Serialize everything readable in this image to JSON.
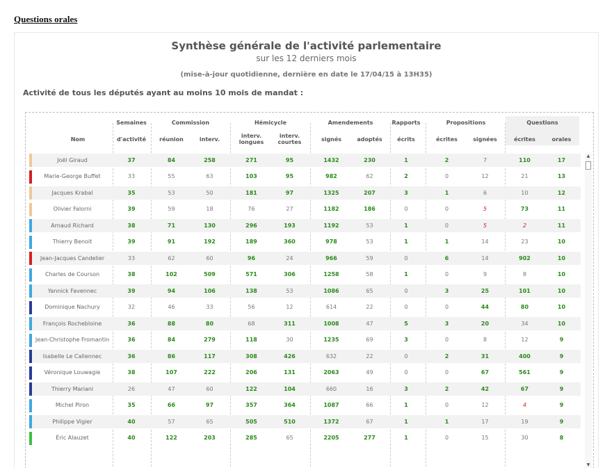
{
  "page_link": "Questions orales",
  "title": "Synthèse générale de l'activité parlementaire",
  "subtitle": "sur les 12 derniers mois",
  "update_note": "(mise-à-jour quotidienne, dernière en date le 17/04/15 à 13H35)",
  "section_title": "Activité de tous les députés ayant au moins 10 mois de mandat :",
  "groups": {
    "semaines": "Semaines",
    "commission": "Commission",
    "hemicycle": "Hémicycle",
    "amendements": "Amendements",
    "rapports": "Rapports",
    "propositions": "Propositions",
    "questions": "Questions"
  },
  "columns": {
    "nom": "Nom",
    "activite": "d'activité",
    "reunion": "réunion",
    "interv": "interv.",
    "interv_longues": "interv. longues",
    "interv_courtes": "interv. courtes",
    "signes": "signés",
    "adoptes": "adoptés",
    "ecrits": "écrits",
    "ecrites": "écrites",
    "signees": "signées",
    "q_ecrites": "écrites",
    "orales": "orales"
  },
  "group_colors": {
    "ecolo": "#6fcf6f",
    "src": "#f0c896",
    "gdr": "#d42020",
    "ump": "#3a54b0",
    "udi": "#40a8e0",
    "fn": "#151565"
  },
  "rows": [
    {
      "name": "Joël Giraud",
      "group": "srd",
      "color": "#f0c896",
      "semaines": {
        "v": "37",
        "s": "g"
      },
      "reunion": {
        "v": "84",
        "s": "g"
      },
      "interv": {
        "v": "258",
        "s": "g"
      },
      "longues": {
        "v": "271",
        "s": "g"
      },
      "courtes": {
        "v": "95",
        "s": "g"
      },
      "signes": {
        "v": "1432",
        "s": "g"
      },
      "adoptes": {
        "v": "230",
        "s": "g"
      },
      "rapports": {
        "v": "1",
        "s": "g"
      },
      "p_ecrites": {
        "v": "2",
        "s": "g"
      },
      "p_signees": {
        "v": "7",
        "s": "n"
      },
      "q_ecrites": {
        "v": "110",
        "s": "g"
      },
      "orales": {
        "v": "17",
        "s": "g"
      }
    },
    {
      "name": "Marie-George Buffet",
      "color": "#d42020",
      "semaines": {
        "v": "33",
        "s": "n"
      },
      "reunion": {
        "v": "55",
        "s": "n"
      },
      "interv": {
        "v": "63",
        "s": "n"
      },
      "longues": {
        "v": "103",
        "s": "g"
      },
      "courtes": {
        "v": "95",
        "s": "g"
      },
      "signes": {
        "v": "982",
        "s": "g"
      },
      "adoptes": {
        "v": "62",
        "s": "n"
      },
      "rapports": {
        "v": "2",
        "s": "g"
      },
      "p_ecrites": {
        "v": "0",
        "s": "n"
      },
      "p_signees": {
        "v": "12",
        "s": "n"
      },
      "q_ecrites": {
        "v": "21",
        "s": "n"
      },
      "orales": {
        "v": "13",
        "s": "g"
      }
    },
    {
      "name": "Jacques Krabal",
      "color": "#f0c896",
      "semaines": {
        "v": "35",
        "s": "g"
      },
      "reunion": {
        "v": "53",
        "s": "n"
      },
      "interv": {
        "v": "50",
        "s": "n"
      },
      "longues": {
        "v": "181",
        "s": "g"
      },
      "courtes": {
        "v": "97",
        "s": "g"
      },
      "signes": {
        "v": "1325",
        "s": "g"
      },
      "adoptes": {
        "v": "207",
        "s": "g"
      },
      "rapports": {
        "v": "3",
        "s": "g"
      },
      "p_ecrites": {
        "v": "1",
        "s": "g"
      },
      "p_signees": {
        "v": "6",
        "s": "n"
      },
      "q_ecrites": {
        "v": "10",
        "s": "n"
      },
      "orales": {
        "v": "12",
        "s": "g"
      }
    },
    {
      "name": "Olivier Falorni",
      "color": "#f0c896",
      "semaines": {
        "v": "39",
        "s": "g"
      },
      "reunion": {
        "v": "59",
        "s": "n"
      },
      "interv": {
        "v": "18",
        "s": "n"
      },
      "longues": {
        "v": "76",
        "s": "n"
      },
      "courtes": {
        "v": "27",
        "s": "n"
      },
      "signes": {
        "v": "1182",
        "s": "g"
      },
      "adoptes": {
        "v": "186",
        "s": "g"
      },
      "rapports": {
        "v": "0",
        "s": "n"
      },
      "p_ecrites": {
        "v": "0",
        "s": "n"
      },
      "p_signees": {
        "v": "5",
        "s": "r"
      },
      "q_ecrites": {
        "v": "73",
        "s": "g"
      },
      "orales": {
        "v": "11",
        "s": "g"
      }
    },
    {
      "name": "Arnaud Richard",
      "color": "#40a8e0",
      "semaines": {
        "v": "38",
        "s": "g"
      },
      "reunion": {
        "v": "71",
        "s": "g"
      },
      "interv": {
        "v": "130",
        "s": "g"
      },
      "longues": {
        "v": "296",
        "s": "g"
      },
      "courtes": {
        "v": "193",
        "s": "g"
      },
      "signes": {
        "v": "1192",
        "s": "g"
      },
      "adoptes": {
        "v": "53",
        "s": "n"
      },
      "rapports": {
        "v": "1",
        "s": "g"
      },
      "p_ecrites": {
        "v": "0",
        "s": "n"
      },
      "p_signees": {
        "v": "5",
        "s": "r"
      },
      "q_ecrites": {
        "v": "2",
        "s": "r"
      },
      "orales": {
        "v": "11",
        "s": "g"
      }
    },
    {
      "name": "Thierry Benoit",
      "color": "#40a8e0",
      "semaines": {
        "v": "39",
        "s": "g"
      },
      "reunion": {
        "v": "91",
        "s": "g"
      },
      "interv": {
        "v": "192",
        "s": "g"
      },
      "longues": {
        "v": "189",
        "s": "g"
      },
      "courtes": {
        "v": "360",
        "s": "g"
      },
      "signes": {
        "v": "978",
        "s": "g"
      },
      "adoptes": {
        "v": "53",
        "s": "n"
      },
      "rapports": {
        "v": "1",
        "s": "g"
      },
      "p_ecrites": {
        "v": "1",
        "s": "g"
      },
      "p_signees": {
        "v": "14",
        "s": "n"
      },
      "q_ecrites": {
        "v": "23",
        "s": "n"
      },
      "orales": {
        "v": "10",
        "s": "g"
      }
    },
    {
      "name": "Jean-Jacques Candelier",
      "color": "#d42020",
      "semaines": {
        "v": "33",
        "s": "n"
      },
      "reunion": {
        "v": "62",
        "s": "n"
      },
      "interv": {
        "v": "60",
        "s": "n"
      },
      "longues": {
        "v": "96",
        "s": "g"
      },
      "courtes": {
        "v": "24",
        "s": "n"
      },
      "signes": {
        "v": "966",
        "s": "g"
      },
      "adoptes": {
        "v": "59",
        "s": "n"
      },
      "rapports": {
        "v": "0",
        "s": "n"
      },
      "p_ecrites": {
        "v": "6",
        "s": "g"
      },
      "p_signees": {
        "v": "14",
        "s": "n"
      },
      "q_ecrites": {
        "v": "902",
        "s": "g"
      },
      "orales": {
        "v": "10",
        "s": "g"
      }
    },
    {
      "name": "Charles de Courson",
      "color": "#40a8e0",
      "semaines": {
        "v": "38",
        "s": "g"
      },
      "reunion": {
        "v": "102",
        "s": "g"
      },
      "interv": {
        "v": "509",
        "s": "g"
      },
      "longues": {
        "v": "571",
        "s": "g"
      },
      "courtes": {
        "v": "306",
        "s": "g"
      },
      "signes": {
        "v": "1258",
        "s": "g"
      },
      "adoptes": {
        "v": "58",
        "s": "n"
      },
      "rapports": {
        "v": "1",
        "s": "g"
      },
      "p_ecrites": {
        "v": "0",
        "s": "n"
      },
      "p_signees": {
        "v": "9",
        "s": "n"
      },
      "q_ecrites": {
        "v": "8",
        "s": "n"
      },
      "orales": {
        "v": "10",
        "s": "g"
      }
    },
    {
      "name": "Yannick Favennec",
      "color": "#40a8e0",
      "semaines": {
        "v": "39",
        "s": "g"
      },
      "reunion": {
        "v": "94",
        "s": "g"
      },
      "interv": {
        "v": "106",
        "s": "g"
      },
      "longues": {
        "v": "138",
        "s": "g"
      },
      "courtes": {
        "v": "53",
        "s": "n"
      },
      "signes": {
        "v": "1086",
        "s": "g"
      },
      "adoptes": {
        "v": "65",
        "s": "n"
      },
      "rapports": {
        "v": "0",
        "s": "n"
      },
      "p_ecrites": {
        "v": "3",
        "s": "g"
      },
      "p_signees": {
        "v": "25",
        "s": "g"
      },
      "q_ecrites": {
        "v": "101",
        "s": "g"
      },
      "orales": {
        "v": "10",
        "s": "g"
      }
    },
    {
      "name": "Dominique Nachury",
      "color": "#2a3a9a",
      "semaines": {
        "v": "32",
        "s": "n"
      },
      "reunion": {
        "v": "46",
        "s": "n"
      },
      "interv": {
        "v": "33",
        "s": "n"
      },
      "longues": {
        "v": "56",
        "s": "n"
      },
      "courtes": {
        "v": "12",
        "s": "n"
      },
      "signes": {
        "v": "614",
        "s": "n"
      },
      "adoptes": {
        "v": "22",
        "s": "n"
      },
      "rapports": {
        "v": "0",
        "s": "n"
      },
      "p_ecrites": {
        "v": "0",
        "s": "n"
      },
      "p_signees": {
        "v": "44",
        "s": "g"
      },
      "q_ecrites": {
        "v": "80",
        "s": "g"
      },
      "orales": {
        "v": "10",
        "s": "g"
      }
    },
    {
      "name": "François Rochebloine",
      "color": "#40a8e0",
      "semaines": {
        "v": "36",
        "s": "g"
      },
      "reunion": {
        "v": "88",
        "s": "g"
      },
      "interv": {
        "v": "80",
        "s": "g"
      },
      "longues": {
        "v": "68",
        "s": "n"
      },
      "courtes": {
        "v": "311",
        "s": "g"
      },
      "signes": {
        "v": "1008",
        "s": "g"
      },
      "adoptes": {
        "v": "47",
        "s": "n"
      },
      "rapports": {
        "v": "5",
        "s": "g"
      },
      "p_ecrites": {
        "v": "3",
        "s": "g"
      },
      "p_signees": {
        "v": "20",
        "s": "g"
      },
      "q_ecrites": {
        "v": "34",
        "s": "n"
      },
      "orales": {
        "v": "10",
        "s": "g"
      }
    },
    {
      "name": "Jean-Christophe Fromantin",
      "color": "#40a8e0",
      "semaines": {
        "v": "36",
        "s": "g"
      },
      "reunion": {
        "v": "84",
        "s": "g"
      },
      "interv": {
        "v": "279",
        "s": "g"
      },
      "longues": {
        "v": "118",
        "s": "g"
      },
      "courtes": {
        "v": "30",
        "s": "n"
      },
      "signes": {
        "v": "1235",
        "s": "g"
      },
      "adoptes": {
        "v": "69",
        "s": "n"
      },
      "rapports": {
        "v": "3",
        "s": "g"
      },
      "p_ecrites": {
        "v": "0",
        "s": "n"
      },
      "p_signees": {
        "v": "8",
        "s": "n"
      },
      "q_ecrites": {
        "v": "12",
        "s": "n"
      },
      "orales": {
        "v": "9",
        "s": "g"
      }
    },
    {
      "name": "Isabelle Le Callennec",
      "color": "#2a3a9a",
      "semaines": {
        "v": "36",
        "s": "g"
      },
      "reunion": {
        "v": "86",
        "s": "g"
      },
      "interv": {
        "v": "117",
        "s": "g"
      },
      "longues": {
        "v": "308",
        "s": "g"
      },
      "courtes": {
        "v": "426",
        "s": "g"
      },
      "signes": {
        "v": "632",
        "s": "n"
      },
      "adoptes": {
        "v": "22",
        "s": "n"
      },
      "rapports": {
        "v": "0",
        "s": "n"
      },
      "p_ecrites": {
        "v": "2",
        "s": "g"
      },
      "p_signees": {
        "v": "31",
        "s": "g"
      },
      "q_ecrites": {
        "v": "400",
        "s": "g"
      },
      "orales": {
        "v": "9",
        "s": "g"
      }
    },
    {
      "name": "Véronique Louwagie",
      "color": "#2a3a9a",
      "semaines": {
        "v": "38",
        "s": "g"
      },
      "reunion": {
        "v": "107",
        "s": "g"
      },
      "interv": {
        "v": "222",
        "s": "g"
      },
      "longues": {
        "v": "206",
        "s": "g"
      },
      "courtes": {
        "v": "131",
        "s": "g"
      },
      "signes": {
        "v": "2063",
        "s": "g"
      },
      "adoptes": {
        "v": "49",
        "s": "n"
      },
      "rapports": {
        "v": "0",
        "s": "n"
      },
      "p_ecrites": {
        "v": "0",
        "s": "n"
      },
      "p_signees": {
        "v": "67",
        "s": "g"
      },
      "q_ecrites": {
        "v": "561",
        "s": "g"
      },
      "orales": {
        "v": "9",
        "s": "g"
      }
    },
    {
      "name": "Thierry Mariani",
      "color": "#2a3a9a",
      "semaines": {
        "v": "26",
        "s": "n"
      },
      "reunion": {
        "v": "47",
        "s": "n"
      },
      "interv": {
        "v": "60",
        "s": "n"
      },
      "longues": {
        "v": "122",
        "s": "g"
      },
      "courtes": {
        "v": "104",
        "s": "g"
      },
      "signes": {
        "v": "660",
        "s": "n"
      },
      "adoptes": {
        "v": "16",
        "s": "n"
      },
      "rapports": {
        "v": "3",
        "s": "g"
      },
      "p_ecrites": {
        "v": "2",
        "s": "g"
      },
      "p_signees": {
        "v": "42",
        "s": "g"
      },
      "q_ecrites": {
        "v": "67",
        "s": "g"
      },
      "orales": {
        "v": "9",
        "s": "g"
      }
    },
    {
      "name": "Michel Piron",
      "color": "#40a8e0",
      "semaines": {
        "v": "35",
        "s": "g"
      },
      "reunion": {
        "v": "66",
        "s": "g"
      },
      "interv": {
        "v": "97",
        "s": "g"
      },
      "longues": {
        "v": "357",
        "s": "g"
      },
      "courtes": {
        "v": "364",
        "s": "g"
      },
      "signes": {
        "v": "1087",
        "s": "g"
      },
      "adoptes": {
        "v": "66",
        "s": "n"
      },
      "rapports": {
        "v": "1",
        "s": "g"
      },
      "p_ecrites": {
        "v": "0",
        "s": "n"
      },
      "p_signees": {
        "v": "12",
        "s": "n"
      },
      "q_ecrites": {
        "v": "4",
        "s": "r"
      },
      "orales": {
        "v": "9",
        "s": "g"
      }
    },
    {
      "name": "Philippe Vigier",
      "color": "#40a8e0",
      "semaines": {
        "v": "40",
        "s": "g"
      },
      "reunion": {
        "v": "57",
        "s": "n"
      },
      "interv": {
        "v": "65",
        "s": "n"
      },
      "longues": {
        "v": "505",
        "s": "g"
      },
      "courtes": {
        "v": "510",
        "s": "g"
      },
      "signes": {
        "v": "1372",
        "s": "g"
      },
      "adoptes": {
        "v": "67",
        "s": "n"
      },
      "rapports": {
        "v": "1",
        "s": "g"
      },
      "p_ecrites": {
        "v": "1",
        "s": "g"
      },
      "p_signees": {
        "v": "17",
        "s": "n"
      },
      "q_ecrites": {
        "v": "19",
        "s": "n"
      },
      "orales": {
        "v": "9",
        "s": "g"
      }
    },
    {
      "name": "Éric Alauzet",
      "color": "#40c040",
      "semaines": {
        "v": "40",
        "s": "g"
      },
      "reunion": {
        "v": "122",
        "s": "g"
      },
      "interv": {
        "v": "203",
        "s": "g"
      },
      "longues": {
        "v": "285",
        "s": "g"
      },
      "courtes": {
        "v": "65",
        "s": "n"
      },
      "signes": {
        "v": "2205",
        "s": "g"
      },
      "adoptes": {
        "v": "277",
        "s": "g"
      },
      "rapports": {
        "v": "1",
        "s": "g"
      },
      "p_ecrites": {
        "v": "0",
        "s": "n"
      },
      "p_signees": {
        "v": "15",
        "s": "n"
      },
      "q_ecrites": {
        "v": "30",
        "s": "n"
      },
      "orales": {
        "v": "8",
        "s": "g"
      }
    }
  ]
}
